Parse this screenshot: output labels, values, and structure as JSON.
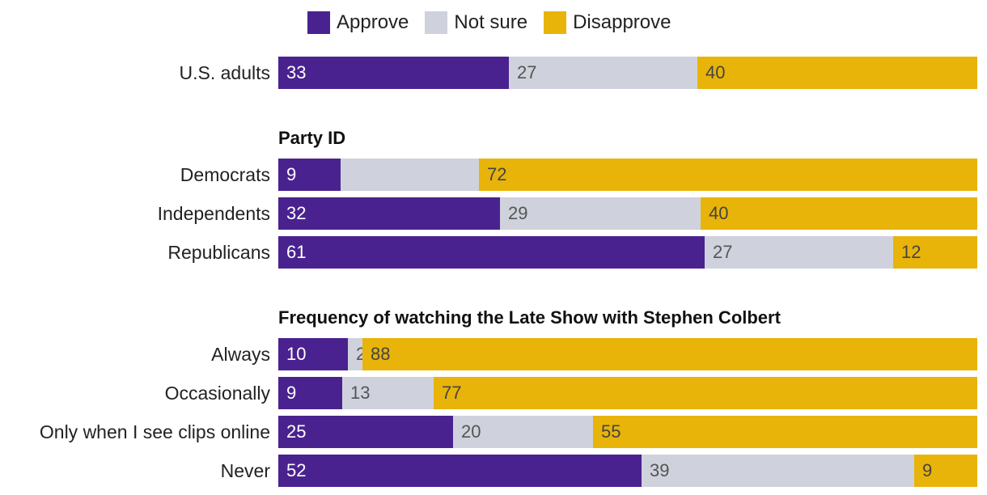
{
  "chart_data": {
    "type": "bar",
    "orientation": "horizontal",
    "stacked": true,
    "legend": [
      {
        "key": "approve",
        "label": "Approve",
        "color": "#4a2290"
      },
      {
        "key": "not_sure",
        "label": "Not sure",
        "color": "#cfd2dc"
      },
      {
        "key": "disapprove",
        "label": "Disapprove",
        "color": "#e8b409"
      }
    ],
    "legend_position": "top",
    "groups": [
      {
        "title": "",
        "rows": [
          {
            "label": "U.S. adults",
            "values": [
              33,
              27,
              40
            ]
          }
        ]
      },
      {
        "title": "Party ID",
        "rows": [
          {
            "label": "Democrats",
            "values": [
              9,
              20,
              72
            ]
          },
          {
            "label": "Independents",
            "values": [
              32,
              29,
              40
            ]
          },
          {
            "label": "Republicans",
            "values": [
              61,
              27,
              12
            ]
          }
        ]
      },
      {
        "title": "Frequency of watching the Late Show with Stephen Colbert",
        "rows": [
          {
            "label": "Always",
            "values": [
              10,
              2,
              88
            ]
          },
          {
            "label": "Occasionally",
            "values": [
              9,
              13,
              77
            ]
          },
          {
            "label": "Only when I see clips online",
            "values": [
              25,
              20,
              55
            ]
          },
          {
            "label": "Never",
            "values": [
              52,
              39,
              9
            ]
          }
        ]
      }
    ],
    "hidden_value_labels": [
      [
        1,
        0,
        1
      ]
    ],
    "text_colors": {
      "approve": "#ffffff",
      "not_sure": "#555555",
      "disapprove": "#444444"
    },
    "xlim": [
      0,
      100
    ]
  }
}
